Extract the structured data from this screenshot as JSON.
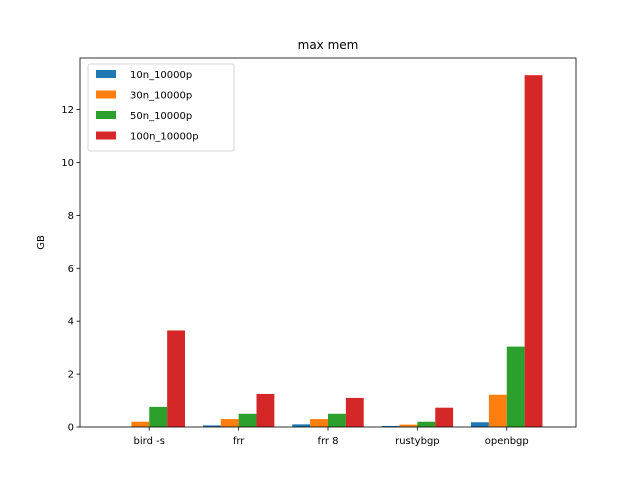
{
  "chart_data": {
    "type": "bar",
    "title": "max mem",
    "xlabel": "",
    "ylabel": "GB",
    "categories": [
      "bird -s",
      "frr",
      "frr 8",
      "rustybgp",
      "openbgp"
    ],
    "ylim": [
      0,
      13.95
    ],
    "yticks": [
      0,
      2,
      4,
      6,
      8,
      10,
      12
    ],
    "grid": false,
    "legend_position": "top-left",
    "series": [
      {
        "name": "10n_10000p",
        "color": "#1f77b4",
        "values": [
          0.01,
          0.06,
          0.1,
          0.04,
          0.18
        ]
      },
      {
        "name": "30n_10000p",
        "color": "#ff7f0e",
        "values": [
          0.2,
          0.3,
          0.3,
          0.09,
          1.22
        ]
      },
      {
        "name": "50n_10000p",
        "color": "#2ca02c",
        "values": [
          0.76,
          0.5,
          0.5,
          0.2,
          3.04
        ]
      },
      {
        "name": "100n_10000p",
        "color": "#d62728",
        "values": [
          3.65,
          1.25,
          1.1,
          0.73,
          13.3
        ]
      }
    ]
  }
}
